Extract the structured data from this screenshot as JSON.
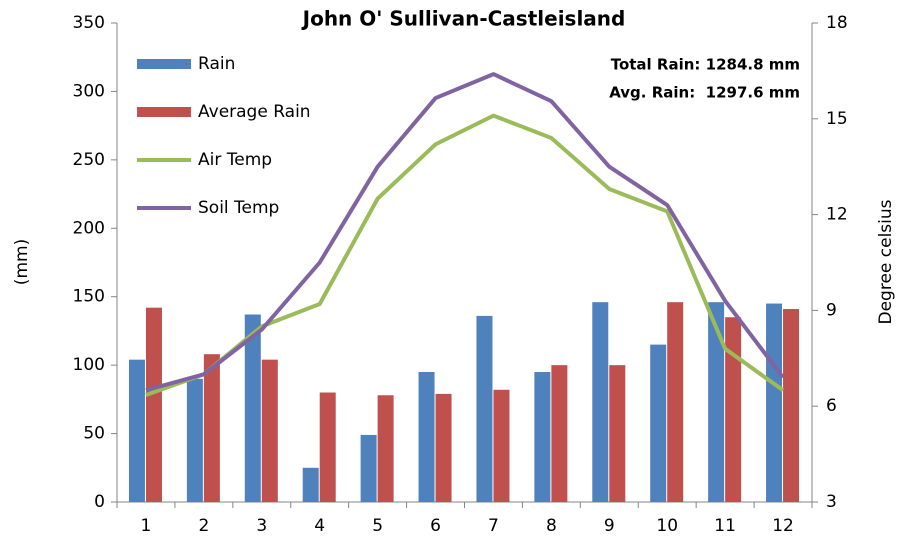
{
  "chart_data": {
    "type": "bar",
    "title": "John O' Sullivan-Castleisland",
    "y_label": "(mm)",
    "y2_label": "Degree celsius",
    "annotations": [
      "Total Rain: 1284.8 mm",
      "Avg. Rain:  1297.6 mm"
    ],
    "categories": [
      "1",
      "2",
      "3",
      "4",
      "5",
      "6",
      "7",
      "8",
      "9",
      "10",
      "11",
      "12"
    ],
    "series": [
      {
        "name": "Rain",
        "type": "bar",
        "color": "#4f81bd",
        "values": [
          104,
          90,
          137,
          25,
          49,
          95,
          136,
          95,
          146,
          115,
          146,
          145
        ]
      },
      {
        "name": "Average Rain",
        "type": "bar",
        "color": "#c0504d",
        "values": [
          142,
          108,
          104,
          80,
          78,
          79,
          82,
          100,
          100,
          146,
          135,
          141
        ]
      },
      {
        "name": "Air Temp",
        "type": "line",
        "axis": "y2",
        "color": "#9bbb59",
        "values": [
          6.35,
          7.0,
          8.5,
          9.2,
          12.5,
          14.2,
          15.1,
          14.4,
          12.8,
          12.1,
          7.8,
          6.5
        ]
      },
      {
        "name": "Soil Temp",
        "type": "line",
        "axis": "y2",
        "color": "#8064a2",
        "values": [
          6.5,
          7.0,
          8.4,
          10.5,
          13.5,
          15.65,
          16.4,
          15.55,
          13.5,
          12.3,
          9.3,
          6.9
        ]
      }
    ],
    "ylim": [
      0,
      350
    ],
    "yticks": [
      0,
      50,
      100,
      150,
      200,
      250,
      300,
      350
    ],
    "y2lim": [
      3,
      18
    ],
    "y2ticks": [
      3,
      6,
      9,
      12,
      15,
      18
    ],
    "grid": false,
    "legend": "upper left"
  }
}
